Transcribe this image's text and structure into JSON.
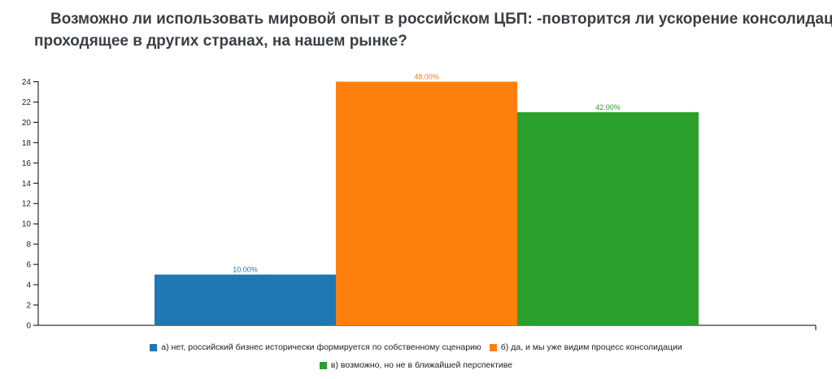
{
  "title": {
    "line1": "Возможно ли использовать мировой опыт в российском ЦБП: -повторится ли ускорение консолидации",
    "line2": "проходящее в других странах, на нашем рынке?"
  },
  "chart_data": {
    "type": "bar",
    "title": "Возможно ли использовать мировой опыт в российском ЦБП: -повторится ли ускорение консолидации проходящее в других странах, на нашем рынке?",
    "xlabel": "",
    "ylabel": "",
    "ylim": [
      0,
      25
    ],
    "yticks": [
      0,
      2,
      4,
      6,
      8,
      10,
      12,
      14,
      16,
      18,
      20,
      22,
      24
    ],
    "grid": false,
    "legend": "bottom",
    "series": [
      {
        "name": "а) нет, российский бизнес исторически формируется по собственному сценарию",
        "value": 5,
        "label": "10.00%",
        "color": "#1f77b4"
      },
      {
        "name": "б) да, и мы уже видим процесс консолидации",
        "value": 24,
        "label": "48.00%",
        "color": "#ff7f0e"
      },
      {
        "name": "в) возможно, но не в ближайшей перспективе",
        "value": 21,
        "label": "42.00%",
        "color": "#2ca02c"
      }
    ]
  }
}
